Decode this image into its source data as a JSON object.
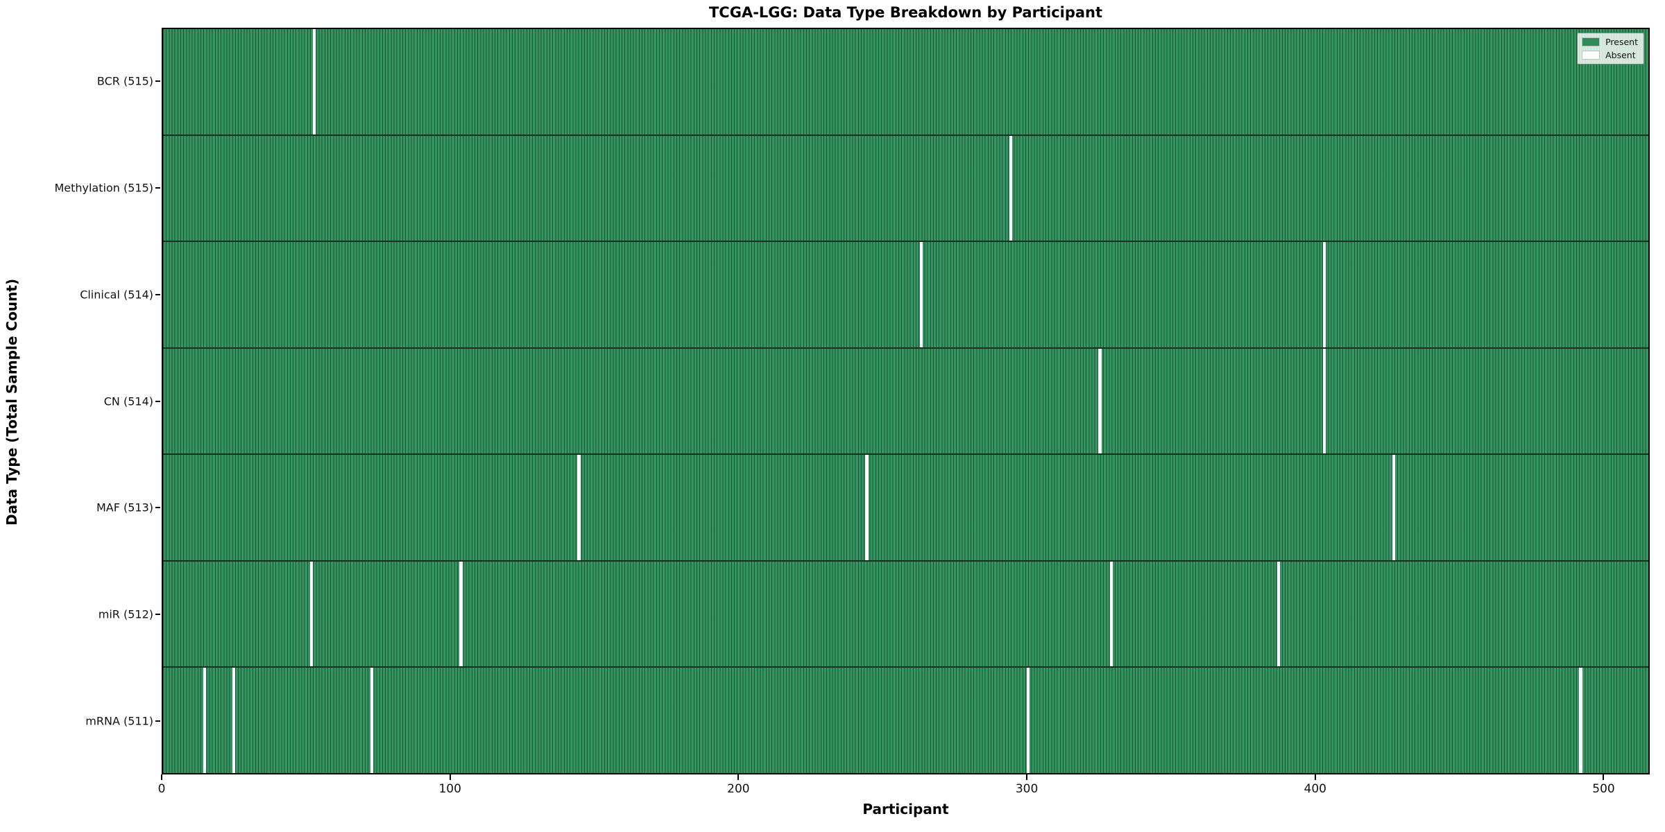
{
  "chart_data": {
    "type": "heatmap",
    "title": "TCGA-LGG: Data Type Breakdown by Participant",
    "xlabel": "Participant",
    "ylabel": "Data Type (Total Sample Count)",
    "x_ticks": [
      0,
      100,
      200,
      300,
      400,
      500
    ],
    "x_range": [
      0,
      516
    ],
    "total_participants": 516,
    "grid": false,
    "legend_position": "upper right",
    "legend": [
      {
        "label": "Present",
        "color": "#2e8b57"
      },
      {
        "label": "Absent",
        "color": "#ffffff"
      }
    ],
    "rows": [
      {
        "label": "BCR (515)",
        "data_type": "BCR",
        "present_count": 515,
        "absent_count": 1,
        "absent_participants": [
          52
        ]
      },
      {
        "label": "Methylation (515)",
        "data_type": "Methylation",
        "present_count": 515,
        "absent_count": 1,
        "absent_participants": [
          294
        ]
      },
      {
        "label": "Clinical (514)",
        "data_type": "Clinical",
        "present_count": 514,
        "absent_count": 2,
        "absent_participants": [
          263,
          403
        ]
      },
      {
        "label": "CN (514)",
        "data_type": "CN",
        "present_count": 514,
        "absent_count": 2,
        "absent_participants": [
          325,
          403
        ]
      },
      {
        "label": "MAF (513)",
        "data_type": "MAF",
        "present_count": 513,
        "absent_count": 3,
        "absent_participants": [
          144,
          244,
          427
        ]
      },
      {
        "label": "miR (512)",
        "data_type": "miR",
        "present_count": 512,
        "absent_count": 4,
        "absent_participants": [
          51,
          103,
          329,
          387
        ]
      },
      {
        "label": "mRNA (511)",
        "data_type": "mRNA",
        "present_count": 511,
        "absent_count": 5,
        "absent_participants": [
          14,
          24,
          72,
          300,
          492
        ]
      }
    ],
    "colors": {
      "present": "#2e8b57",
      "absent": "#ffffff",
      "bar_edge": "#1c4f32",
      "row_divider": "#13301f",
      "spine": "#000000"
    }
  }
}
